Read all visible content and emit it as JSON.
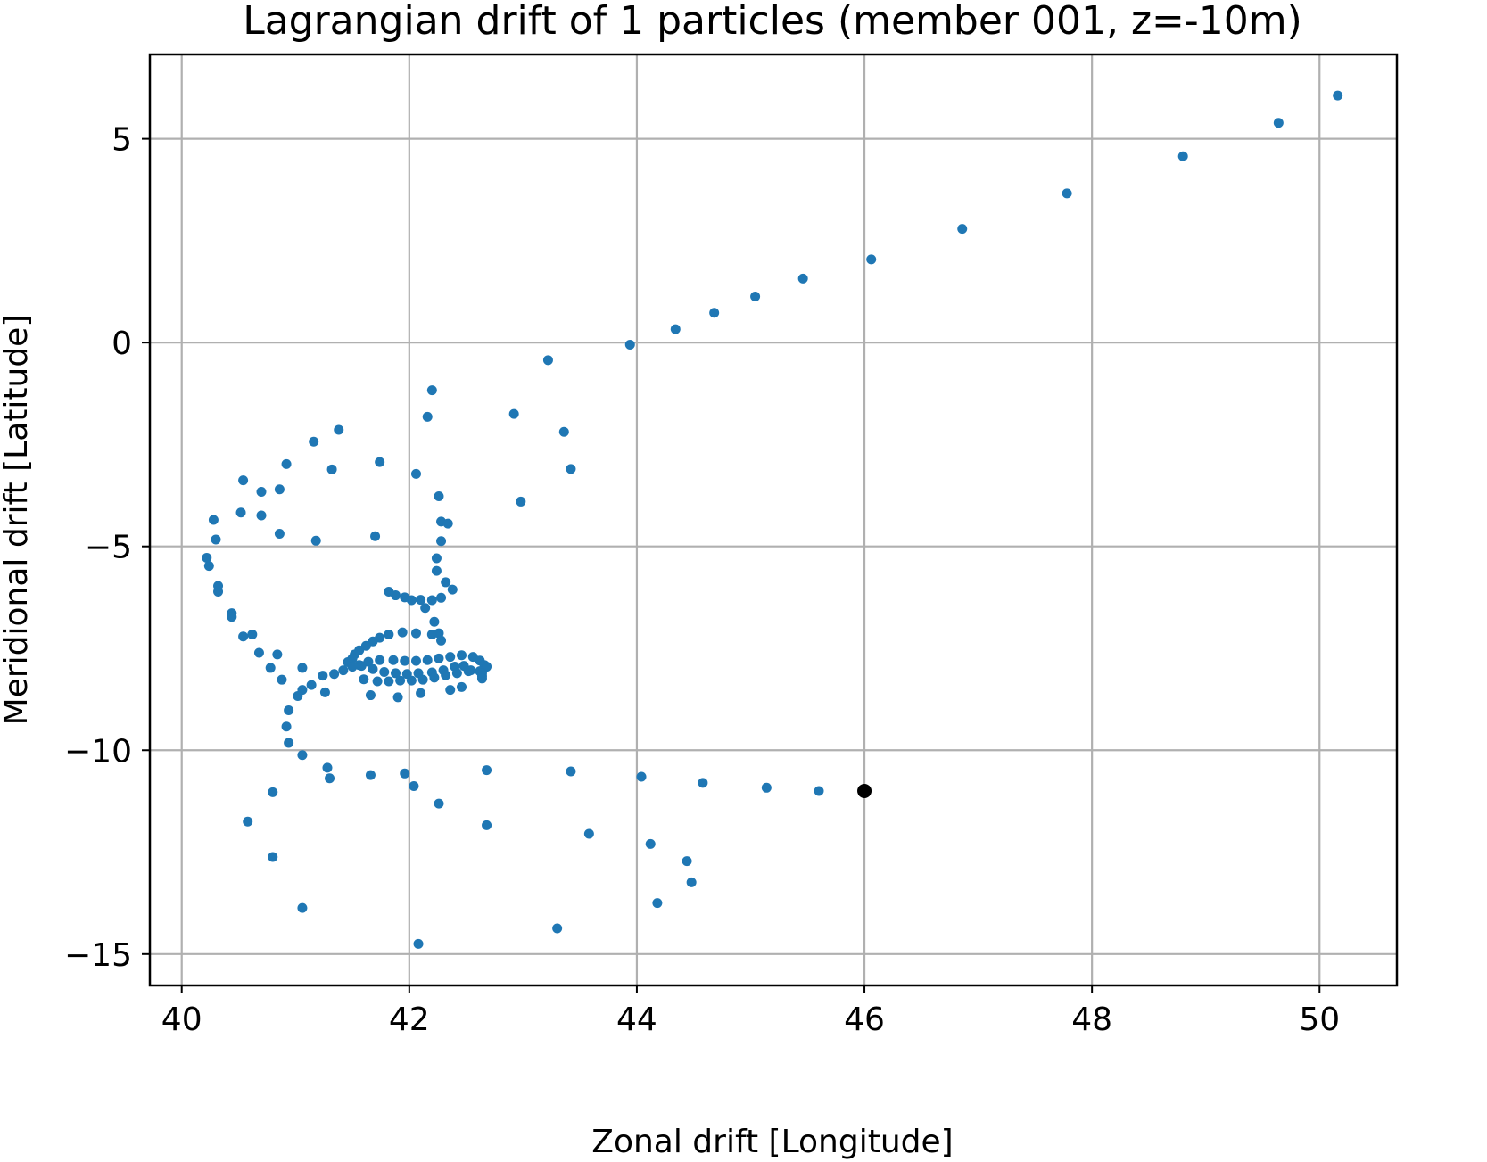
{
  "chart_data": {
    "type": "scatter",
    "title": "Lagrangian drift of 1 particles (member 001, z=-10m)",
    "xlabel": "Zonal drift [Longitude]",
    "ylabel": "Meridional drift [Latitude]",
    "xlim": [
      39.72,
      50.68
    ],
    "ylim": [
      -15.77,
      7.07
    ],
    "xticks": [
      40,
      42,
      44,
      46,
      48,
      50
    ],
    "xtick_labels": [
      "40",
      "42",
      "44",
      "46",
      "48",
      "50"
    ],
    "yticks": [
      5,
      0,
      -5,
      -10,
      -15
    ],
    "ytick_labels": [
      "5",
      "0",
      "−5",
      "−10",
      "−15"
    ],
    "grid": true,
    "series": [
      {
        "color": "#1f77b4",
        "points": [
          [
            50.16,
            6.06
          ],
          [
            49.64,
            5.39
          ],
          [
            48.8,
            4.57
          ],
          [
            47.78,
            3.66
          ],
          [
            46.86,
            2.79
          ],
          [
            46.06,
            2.04
          ],
          [
            45.46,
            1.57
          ],
          [
            45.04,
            1.13
          ],
          [
            44.68,
            0.73
          ],
          [
            44.34,
            0.33
          ],
          [
            43.94,
            -0.05
          ],
          [
            43.22,
            -0.43
          ],
          [
            42.92,
            -1.75
          ],
          [
            42.2,
            -1.17
          ],
          [
            42.16,
            -1.82
          ],
          [
            43.36,
            -2.19
          ],
          [
            43.42,
            -3.1
          ],
          [
            42.98,
            -3.9
          ],
          [
            42.06,
            -3.22
          ],
          [
            41.74,
            -2.93
          ],
          [
            41.38,
            -2.14
          ],
          [
            41.16,
            -2.43
          ],
          [
            41.32,
            -3.11
          ],
          [
            40.92,
            -2.98
          ],
          [
            40.54,
            -3.38
          ],
          [
            40.7,
            -3.66
          ],
          [
            40.86,
            -3.6
          ],
          [
            40.28,
            -4.35
          ],
          [
            40.52,
            -4.17
          ],
          [
            40.7,
            -4.24
          ],
          [
            40.3,
            -4.83
          ],
          [
            40.86,
            -4.69
          ],
          [
            41.18,
            -4.86
          ],
          [
            41.7,
            -4.75
          ],
          [
            42.26,
            -3.77
          ],
          [
            42.28,
            -4.39
          ],
          [
            42.34,
            -4.44
          ],
          [
            42.28,
            -4.87
          ],
          [
            42.24,
            -5.29
          ],
          [
            42.24,
            -5.6
          ],
          [
            42.32,
            -5.88
          ],
          [
            42.38,
            -6.06
          ],
          [
            42.28,
            -6.26
          ],
          [
            42.2,
            -6.32
          ],
          [
            42.1,
            -6.31
          ],
          [
            42.02,
            -6.32
          ],
          [
            41.96,
            -6.25
          ],
          [
            41.88,
            -6.2
          ],
          [
            41.82,
            -6.11
          ],
          [
            42.14,
            -6.51
          ],
          [
            42.22,
            -6.85
          ],
          [
            42.26,
            -7.13
          ],
          [
            42.28,
            -7.31
          ],
          [
            42.2,
            -7.16
          ],
          [
            42.06,
            -7.13
          ],
          [
            41.94,
            -7.11
          ],
          [
            41.82,
            -7.16
          ],
          [
            41.74,
            -7.24
          ],
          [
            41.68,
            -7.33
          ],
          [
            41.62,
            -7.44
          ],
          [
            41.56,
            -7.55
          ],
          [
            41.52,
            -7.65
          ],
          [
            41.5,
            -7.75
          ],
          [
            41.46,
            -7.84
          ],
          [
            41.56,
            -7.91
          ],
          [
            41.64,
            -7.83
          ],
          [
            41.74,
            -7.79
          ],
          [
            41.86,
            -7.79
          ],
          [
            41.96,
            -7.81
          ],
          [
            42.06,
            -7.81
          ],
          [
            42.16,
            -7.79
          ],
          [
            42.26,
            -7.75
          ],
          [
            42.36,
            -7.71
          ],
          [
            42.46,
            -7.67
          ],
          [
            42.56,
            -7.71
          ],
          [
            42.62,
            -7.8
          ],
          [
            42.66,
            -7.91
          ],
          [
            42.68,
            -7.95
          ],
          [
            42.62,
            -8.06
          ],
          [
            42.54,
            -8.04
          ],
          [
            42.48,
            -7.93
          ],
          [
            42.4,
            -7.95
          ],
          [
            42.3,
            -8.04
          ],
          [
            42.2,
            -8.09
          ],
          [
            42.08,
            -8.11
          ],
          [
            41.98,
            -8.13
          ],
          [
            41.88,
            -8.11
          ],
          [
            41.78,
            -8.08
          ],
          [
            41.68,
            -8.01
          ],
          [
            41.58,
            -7.93
          ],
          [
            41.5,
            -7.95
          ],
          [
            41.42,
            -8.04
          ],
          [
            41.34,
            -8.13
          ],
          [
            41.24,
            -8.17
          ],
          [
            41.6,
            -8.26
          ],
          [
            41.72,
            -8.31
          ],
          [
            41.82,
            -8.31
          ],
          [
            41.92,
            -8.29
          ],
          [
            42.02,
            -8.29
          ],
          [
            42.12,
            -8.27
          ],
          [
            42.22,
            -8.22
          ],
          [
            42.32,
            -8.16
          ],
          [
            42.42,
            -8.11
          ],
          [
            42.52,
            -8.06
          ],
          [
            42.64,
            -8.11
          ],
          [
            42.64,
            -8.18
          ],
          [
            42.64,
            -8.24
          ],
          [
            42.46,
            -8.45
          ],
          [
            42.36,
            -8.52
          ],
          [
            42.1,
            -8.6
          ],
          [
            41.9,
            -8.7
          ],
          [
            41.66,
            -8.65
          ],
          [
            41.26,
            -8.58
          ],
          [
            41.06,
            -8.52
          ],
          [
            41.02,
            -8.67
          ],
          [
            41.14,
            -8.4
          ],
          [
            41.06,
            -7.98
          ],
          [
            40.88,
            -8.27
          ],
          [
            40.78,
            -7.98
          ],
          [
            40.68,
            -7.61
          ],
          [
            40.84,
            -7.65
          ],
          [
            40.62,
            -7.16
          ],
          [
            40.54,
            -7.21
          ],
          [
            40.44,
            -6.64
          ],
          [
            40.44,
            -6.73
          ],
          [
            40.32,
            -6.11
          ],
          [
            40.32,
            -5.97
          ],
          [
            40.24,
            -5.48
          ],
          [
            40.22,
            -5.28
          ],
          [
            40.94,
            -9.02
          ],
          [
            40.92,
            -9.42
          ],
          [
            40.94,
            -9.82
          ],
          [
            41.06,
            -10.12
          ],
          [
            41.28,
            -10.43
          ],
          [
            41.3,
            -10.69
          ],
          [
            41.66,
            -10.61
          ],
          [
            41.96,
            -10.57
          ],
          [
            42.04,
            -10.88
          ],
          [
            42.26,
            -11.31
          ],
          [
            42.68,
            -10.49
          ],
          [
            42.68,
            -11.84
          ],
          [
            43.42,
            -10.52
          ],
          [
            43.58,
            -12.05
          ],
          [
            44.04,
            -10.65
          ],
          [
            44.12,
            -12.3
          ],
          [
            44.44,
            -12.72
          ],
          [
            44.48,
            -13.24
          ],
          [
            44.18,
            -13.75
          ],
          [
            43.3,
            -14.37
          ],
          [
            42.08,
            -14.75
          ],
          [
            41.06,
            -13.87
          ],
          [
            40.8,
            -12.62
          ],
          [
            40.58,
            -11.75
          ],
          [
            40.8,
            -11.03
          ],
          [
            44.58,
            -10.8
          ],
          [
            45.14,
            -10.92
          ],
          [
            45.6,
            -11.0
          ]
        ]
      },
      {
        "color": "#000000",
        "points": [
          [
            46.0,
            -11.0
          ]
        ]
      }
    ]
  }
}
